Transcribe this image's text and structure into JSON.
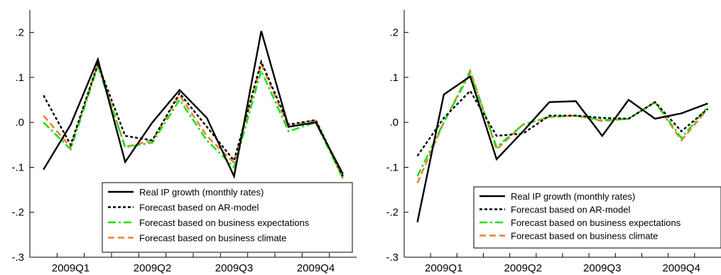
{
  "colors": {
    "real": "#000000",
    "ar": "#000000",
    "expectations": "#22dd22",
    "climate": "#f08030",
    "axis": "#000000"
  },
  "chart_data": [
    {
      "type": "line",
      "x": [
        1,
        2,
        3,
        4,
        5,
        6,
        7,
        8,
        9,
        10,
        11,
        12
      ],
      "xticklabels": [
        "2009Q1",
        "2009Q2",
        "2009Q3",
        "2009Q4"
      ],
      "ylim": [
        -0.3,
        0.25
      ],
      "yticks": [
        -0.3,
        -0.2,
        -0.1,
        0.0,
        0.1,
        0.2
      ],
      "yticklabels": [
        "-.3",
        "-.2",
        "-.1",
        ".0",
        ".1",
        ".2"
      ],
      "grid": false,
      "legend_position": "bottom-right",
      "series": [
        {
          "name": "Real IP growth (monthly rates)",
          "style": "solid",
          "color_key": "real",
          "values": [
            -0.105,
            -0.005,
            0.14,
            -0.088,
            0.0,
            0.072,
            0.01,
            -0.12,
            0.203,
            -0.01,
            0.0,
            -0.115
          ]
        },
        {
          "name": "Forecast based on AR-model",
          "style": "dotted",
          "color_key": "ar",
          "values": [
            0.06,
            -0.05,
            0.13,
            -0.03,
            -0.04,
            0.065,
            -0.01,
            -0.085,
            0.135,
            -0.005,
            0.005,
            -0.12
          ]
        },
        {
          "name": "Forecast based on business expectations",
          "style": "dashdot",
          "color_key": "expectations",
          "values": [
            0.0,
            -0.06,
            0.125,
            -0.055,
            -0.045,
            0.05,
            -0.04,
            -0.1,
            0.115,
            -0.02,
            0.0,
            -0.125
          ]
        },
        {
          "name": "Forecast based on business climate",
          "style": "dashed",
          "color_key": "climate",
          "values": [
            0.015,
            -0.055,
            0.13,
            -0.055,
            -0.04,
            0.06,
            -0.03,
            -0.09,
            0.13,
            -0.01,
            0.005,
            -0.125
          ]
        }
      ]
    },
    {
      "type": "line",
      "x": [
        1,
        2,
        3,
        4,
        5,
        6,
        7,
        8,
        9,
        10,
        11,
        12
      ],
      "xticklabels": [
        "2009Q1",
        "2009Q2",
        "2009Q3",
        "2009Q4"
      ],
      "ylim": [
        -0.3,
        0.25
      ],
      "yticks": [
        -0.3,
        -0.2,
        -0.1,
        0.0,
        0.1,
        0.2
      ],
      "yticklabels": [
        "-.3",
        "-.2",
        "-.1",
        ".0",
        ".1",
        ".2"
      ],
      "grid": false,
      "legend_position": "bottom-right",
      "series": [
        {
          "name": "Real IP growth (monthly rates)",
          "style": "solid",
          "color_key": "real",
          "values": [
            -0.222,
            0.062,
            0.102,
            -0.082,
            -0.02,
            0.045,
            0.047,
            -0.03,
            0.05,
            0.008,
            0.02,
            0.042
          ]
        },
        {
          "name": "Forecast based on AR-model",
          "style": "dotted",
          "color_key": "ar",
          "values": [
            -0.075,
            0.01,
            0.07,
            -0.03,
            -0.025,
            0.015,
            0.015,
            0.01,
            0.008,
            0.045,
            -0.02,
            0.03
          ]
        },
        {
          "name": "Forecast based on business expectations",
          "style": "dashdot",
          "color_key": "expectations",
          "values": [
            -0.12,
            0.0,
            0.11,
            -0.055,
            -0.005,
            0.012,
            0.015,
            0.005,
            0.008,
            0.045,
            -0.035,
            0.035
          ]
        },
        {
          "name": "Forecast based on business climate",
          "style": "dashed",
          "color_key": "climate",
          "values": [
            -0.135,
            0.0,
            0.115,
            -0.06,
            -0.005,
            0.012,
            0.015,
            0.003,
            0.008,
            0.045,
            -0.04,
            0.03
          ]
        }
      ]
    }
  ]
}
